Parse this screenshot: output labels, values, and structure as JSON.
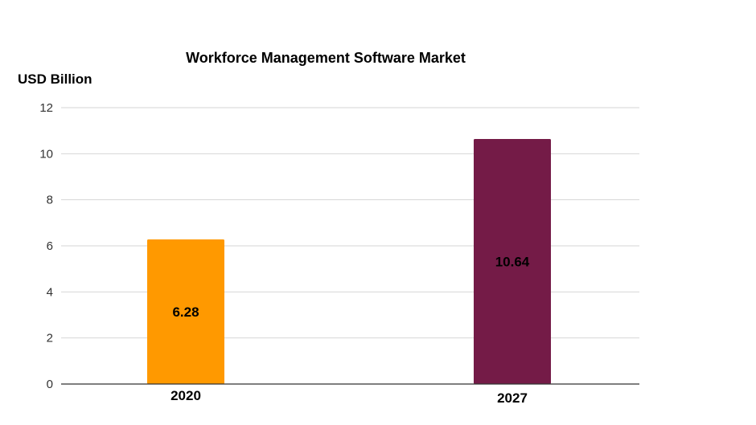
{
  "chart_data": {
    "type": "bar",
    "title": "Workforce Management Software Market",
    "xlabel": "",
    "ylabel": "USD Billion",
    "categories": [
      "2020",
      "2027"
    ],
    "values": [
      6.28,
      10.64
    ],
    "data_labels": [
      "6.28",
      "10.64"
    ],
    "colors": [
      "#ff9900",
      "#741b47"
    ],
    "ylim": [
      0,
      12
    ],
    "yticks": [
      0,
      2,
      4,
      6,
      8,
      10,
      12
    ],
    "ytick_labels": [
      "0",
      "2",
      "4",
      "6",
      "8",
      "10",
      "12"
    ],
    "grid": true,
    "legend": "none"
  }
}
